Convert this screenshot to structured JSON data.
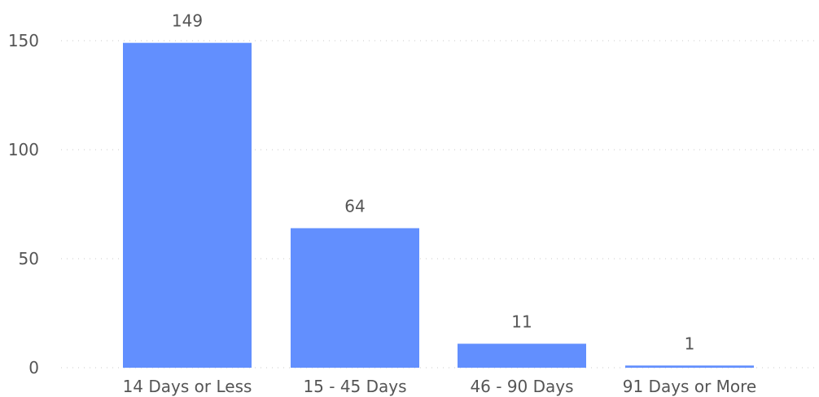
{
  "chart_data": {
    "type": "bar",
    "categories": [
      "14 Days or Less",
      "15 - 45 Days",
      "46 - 90 Days",
      "91 Days or More"
    ],
    "values": [
      149,
      64,
      11,
      1
    ],
    "data_labels": [
      "149",
      "64",
      "11",
      "1"
    ],
    "title": "",
    "xlabel": "",
    "ylabel": "",
    "ylim": [
      0,
      150
    ],
    "yticks": [
      0,
      50,
      100,
      150
    ],
    "ytick_labels": [
      "0",
      "50",
      "100",
      "150"
    ],
    "grid": true,
    "legend": "none",
    "bar_color": "#628ffe",
    "text_color": "#555555",
    "grid_color": "#c8c8c8"
  }
}
